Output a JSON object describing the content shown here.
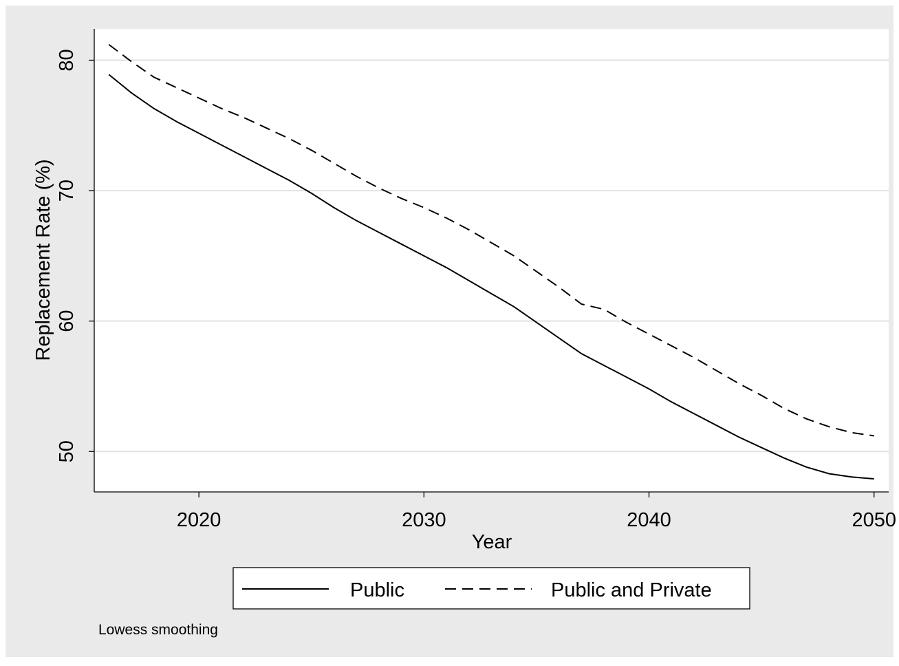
{
  "chart_data": {
    "type": "line",
    "y_label": "Replacement Rate (%)",
    "x_label": "Year",
    "note": "Lowess smoothing",
    "x": [
      2016,
      2017,
      2018,
      2019,
      2020,
      2021,
      2022,
      2023,
      2024,
      2025,
      2026,
      2027,
      2028,
      2029,
      2030,
      2031,
      2032,
      2033,
      2034,
      2035,
      2036,
      2037,
      2038,
      2039,
      2040,
      2041,
      2042,
      2043,
      2044,
      2045,
      2046,
      2047,
      2048,
      2049,
      2050
    ],
    "series": [
      {
        "name": "Public",
        "color": "#000000",
        "style": "solid",
        "values": [
          78.9,
          77.5,
          76.3,
          75.3,
          74.4,
          73.5,
          72.6,
          71.7,
          70.8,
          69.8,
          68.7,
          67.7,
          66.8,
          65.9,
          65.0,
          64.1,
          63.1,
          62.1,
          61.1,
          59.9,
          58.7,
          57.5,
          56.6,
          55.7,
          54.8,
          53.8,
          52.9,
          52.0,
          51.1,
          50.3,
          49.5,
          48.8,
          48.3,
          48.05,
          47.9
        ]
      },
      {
        "name": "Public and Private",
        "color": "#000000",
        "style": "dashed",
        "values": [
          81.2,
          79.9,
          78.7,
          77.9,
          77.1,
          76.3,
          75.6,
          74.8,
          74.0,
          73.1,
          72.1,
          71.1,
          70.2,
          69.4,
          68.7,
          67.9,
          67.0,
          66.0,
          65.0,
          63.8,
          62.6,
          61.3,
          60.9,
          59.9,
          59.0,
          58.1,
          57.2,
          56.2,
          55.2,
          54.3,
          53.3,
          52.5,
          51.9,
          51.45,
          51.2
        ]
      }
    ],
    "xlim": [
      2015.35,
      2050.65
    ],
    "xticks": [
      2020,
      2030,
      2040,
      2050
    ],
    "ylim": [
      46.9,
      82.4
    ],
    "yticks": [
      50,
      60,
      70,
      80
    ],
    "grid": true,
    "legend": "bottom"
  }
}
